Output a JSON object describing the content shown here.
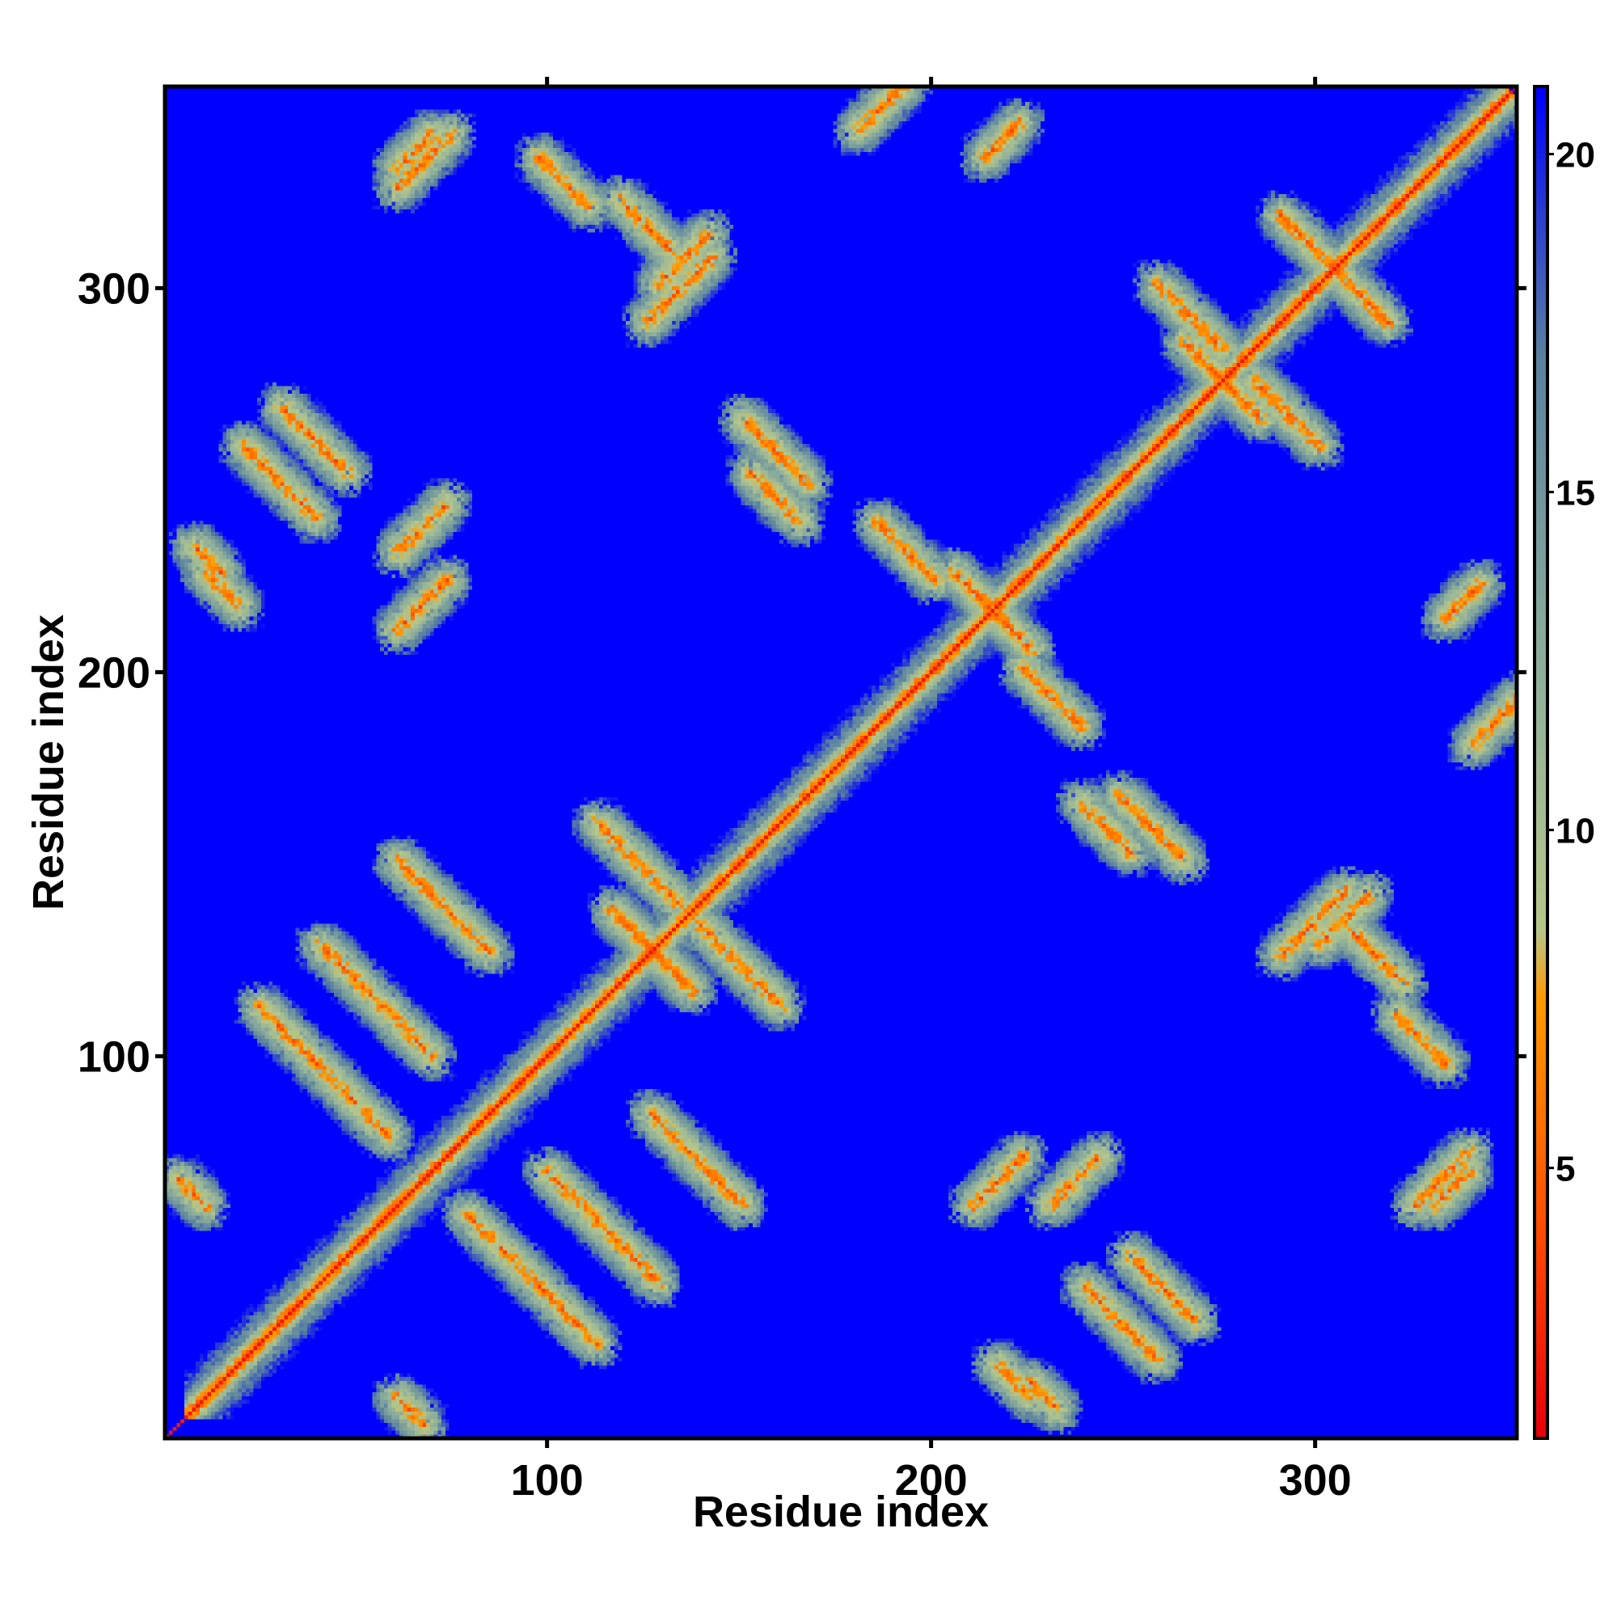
{
  "chart_data": {
    "type": "heatmap",
    "title": "",
    "xlabel": "Residue index",
    "ylabel": "Residue index",
    "xlim": [
      1,
      352
    ],
    "ylim": [
      1,
      352
    ],
    "x_ticks": [
      100,
      200,
      300
    ],
    "y_ticks": [
      100,
      200,
      300
    ],
    "colorbar": {
      "range": [
        1,
        21
      ],
      "ticks": [
        5,
        10,
        15,
        20
      ],
      "stops": [
        {
          "value": 1,
          "color": "#e8000b"
        },
        {
          "value": 4,
          "color": "#ff4a00"
        },
        {
          "value": 7.5,
          "color": "#ff9a00"
        },
        {
          "value": 8.5,
          "color": "#b7c789"
        },
        {
          "value": 12,
          "color": "#93b29a"
        },
        {
          "value": 17,
          "color": "#5a82a0"
        },
        {
          "value": 21,
          "color": "#0000ff"
        }
      ],
      "placement": "right"
    },
    "background_value": 21,
    "matrix_symmetric": true,
    "features": [
      {
        "kind": "diagonal",
        "value": 2
      },
      {
        "kind": "helix_band",
        "from": 5,
        "to": 350,
        "width": 6
      },
      {
        "kind": "contact",
        "i": 24,
        "j": 112,
        "length": 35,
        "orientation": "anti"
      },
      {
        "kind": "contact",
        "i": 40,
        "j": 128,
        "length": 30,
        "orientation": "anti"
      },
      {
        "kind": "contact",
        "i": 60,
        "j": 150,
        "length": 25,
        "orientation": "anti"
      },
      {
        "kind": "contact",
        "i": 118,
        "j": 135,
        "length": 20,
        "orientation": "anti"
      },
      {
        "kind": "contact",
        "i": 112,
        "j": 160,
        "length": 22,
        "orientation": "anti"
      },
      {
        "kind": "contact",
        "i": 20,
        "j": 258,
        "length": 20,
        "orientation": "anti"
      },
      {
        "kind": "contact",
        "i": 30,
        "j": 268,
        "length": 18,
        "orientation": "anti"
      },
      {
        "kind": "contact",
        "i": 60,
        "j": 325,
        "length": 15,
        "orientation": "parallel"
      },
      {
        "kind": "contact",
        "i": 118,
        "j": 322,
        "length": 14,
        "orientation": "anti"
      },
      {
        "kind": "contact",
        "i": 185,
        "j": 238,
        "length": 16,
        "orientation": "anti"
      },
      {
        "kind": "contact",
        "i": 205,
        "j": 225,
        "length": 15,
        "orientation": "anti"
      },
      {
        "kind": "contact",
        "i": 150,
        "j": 265,
        "length": 18,
        "orientation": "anti"
      },
      {
        "kind": "contact",
        "i": 238,
        "j": 165,
        "length": 14,
        "orientation": "anti"
      },
      {
        "kind": "contact",
        "i": 258,
        "j": 300,
        "length": 18,
        "orientation": "anti"
      },
      {
        "kind": "contact",
        "i": 290,
        "j": 318,
        "length": 16,
        "orientation": "anti"
      },
      {
        "kind": "contact",
        "i": 265,
        "j": 285,
        "length": 14,
        "orientation": "anti"
      },
      {
        "kind": "contact",
        "i": 128,
        "j": 300,
        "length": 14,
        "orientation": "parallel"
      },
      {
        "kind": "contact",
        "i": 213,
        "j": 333,
        "length": 10,
        "orientation": "parallel"
      },
      {
        "kind": "contact",
        "i": 60,
        "j": 210,
        "length": 14,
        "orientation": "parallel"
      },
      {
        "kind": "contact",
        "i": 10,
        "j": 225,
        "length": 10,
        "orientation": "anti"
      },
      {
        "kind": "contact",
        "i": 290,
        "j": 125,
        "length": 18,
        "orientation": "parallel"
      },
      {
        "kind": "contact",
        "i": 320,
        "j": 110,
        "length": 14,
        "orientation": "anti"
      },
      {
        "kind": "contact",
        "i": 340,
        "j": 180,
        "length": 14,
        "orientation": "parallel"
      },
      {
        "kind": "contact",
        "i": 230,
        "j": 60,
        "length": 14,
        "orientation": "parallel"
      },
      {
        "kind": "contact",
        "i": 330,
        "j": 60,
        "length": 10,
        "orientation": "parallel"
      },
      {
        "kind": "contact",
        "i": 225,
        "j": 14,
        "length": 8,
        "orientation": "anti"
      },
      {
        "kind": "contact",
        "i": 60,
        "j": 10,
        "length": 8,
        "orientation": "anti"
      }
    ]
  }
}
